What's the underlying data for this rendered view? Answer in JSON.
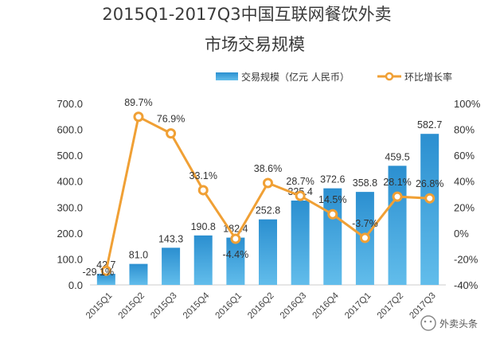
{
  "chart_data": {
    "type": "bar+line",
    "title_line1": "2015Q1-2017Q3中国互联网餐饮外卖",
    "title_line2": "市场交易规模",
    "categories": [
      "2015Q1",
      "2015Q2",
      "2015Q3",
      "2015Q4",
      "2016Q1",
      "2016Q2",
      "2016Q3",
      "2016Q4",
      "2017Q1",
      "2017Q2",
      "2017Q3"
    ],
    "series": [
      {
        "name": "交易规模（亿元 人民币）",
        "type": "bar",
        "axis": "left",
        "values": [
          42.7,
          81.0,
          143.3,
          190.8,
          182.4,
          252.8,
          325.4,
          372.6,
          358.8,
          459.5,
          582.7
        ],
        "labels": [
          "42.7",
          "81.0",
          "143.3",
          "190.8",
          "182.4",
          "252.8",
          "325.4",
          "372.6",
          "358.8",
          "459.5",
          "582.7"
        ]
      },
      {
        "name": "环比增长率",
        "type": "line",
        "axis": "right",
        "values": [
          -29.1,
          89.7,
          76.9,
          33.1,
          -4.4,
          38.6,
          28.7,
          14.5,
          -3.7,
          28.1,
          26.8
        ],
        "labels": [
          "-29.1%",
          "89.7%",
          "76.9%",
          "33.1%",
          "-4.4%",
          "38.6%",
          "28.7%",
          "14.5%",
          "-3.7%",
          "28.1%",
          "26.8%"
        ]
      }
    ],
    "y_left": {
      "min": 0,
      "max": 700,
      "ticks": [
        "0.0",
        "100.0",
        "200.0",
        "300.0",
        "400.0",
        "500.0",
        "600.0",
        "700.0"
      ]
    },
    "y_right": {
      "min": -40,
      "max": 100,
      "ticks": [
        "-40%",
        "-20%",
        "0%",
        "20%",
        "40%",
        "60%",
        "80%",
        "100%"
      ]
    },
    "legend_position": "top-right",
    "colors": {
      "bar": "#2e9ad6",
      "bar_light": "#5fb8e8",
      "line": "#f0a035",
      "marker_fill": "#ffffff",
      "axis_line": "#cccccc"
    }
  },
  "watermark": {
    "text": "外卖头条"
  }
}
